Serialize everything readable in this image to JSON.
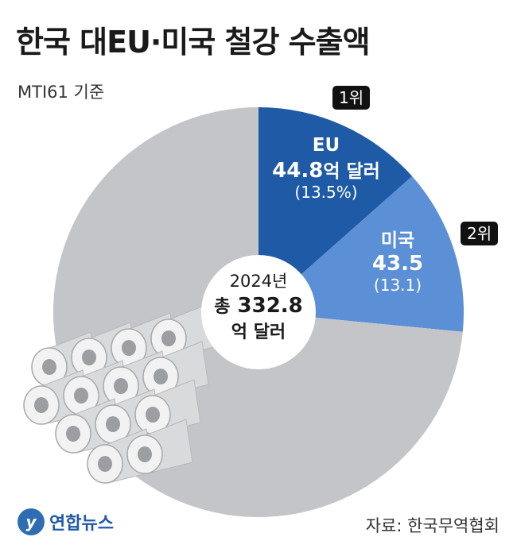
{
  "title": "한국 대EU·미국 철강 수출액",
  "subtitle": "MTI61 기준",
  "chart_data": {
    "type": "pie",
    "style": "donut",
    "year_label": "2024년",
    "total_prefix": "총",
    "total_value": "332.8",
    "total_unit": "억 달러",
    "slices": [
      {
        "name": "EU",
        "value": 44.8,
        "value_text": "44.8",
        "unit": "억 달러",
        "percent_text": "(13.5%)",
        "rank": "1위",
        "color": "#1f5aa6"
      },
      {
        "name": "미국",
        "value": 43.5,
        "value_text": "43.5",
        "unit": "",
        "percent_text": "(13.1)",
        "rank": "2위",
        "color": "#5b8fd6"
      },
      {
        "name": "",
        "value": 244.5,
        "color": "#c4c5c8"
      }
    ]
  },
  "footer": {
    "logo_mark": "y",
    "logo_text": "연합뉴스",
    "source": "자료: 한국무역협회"
  }
}
